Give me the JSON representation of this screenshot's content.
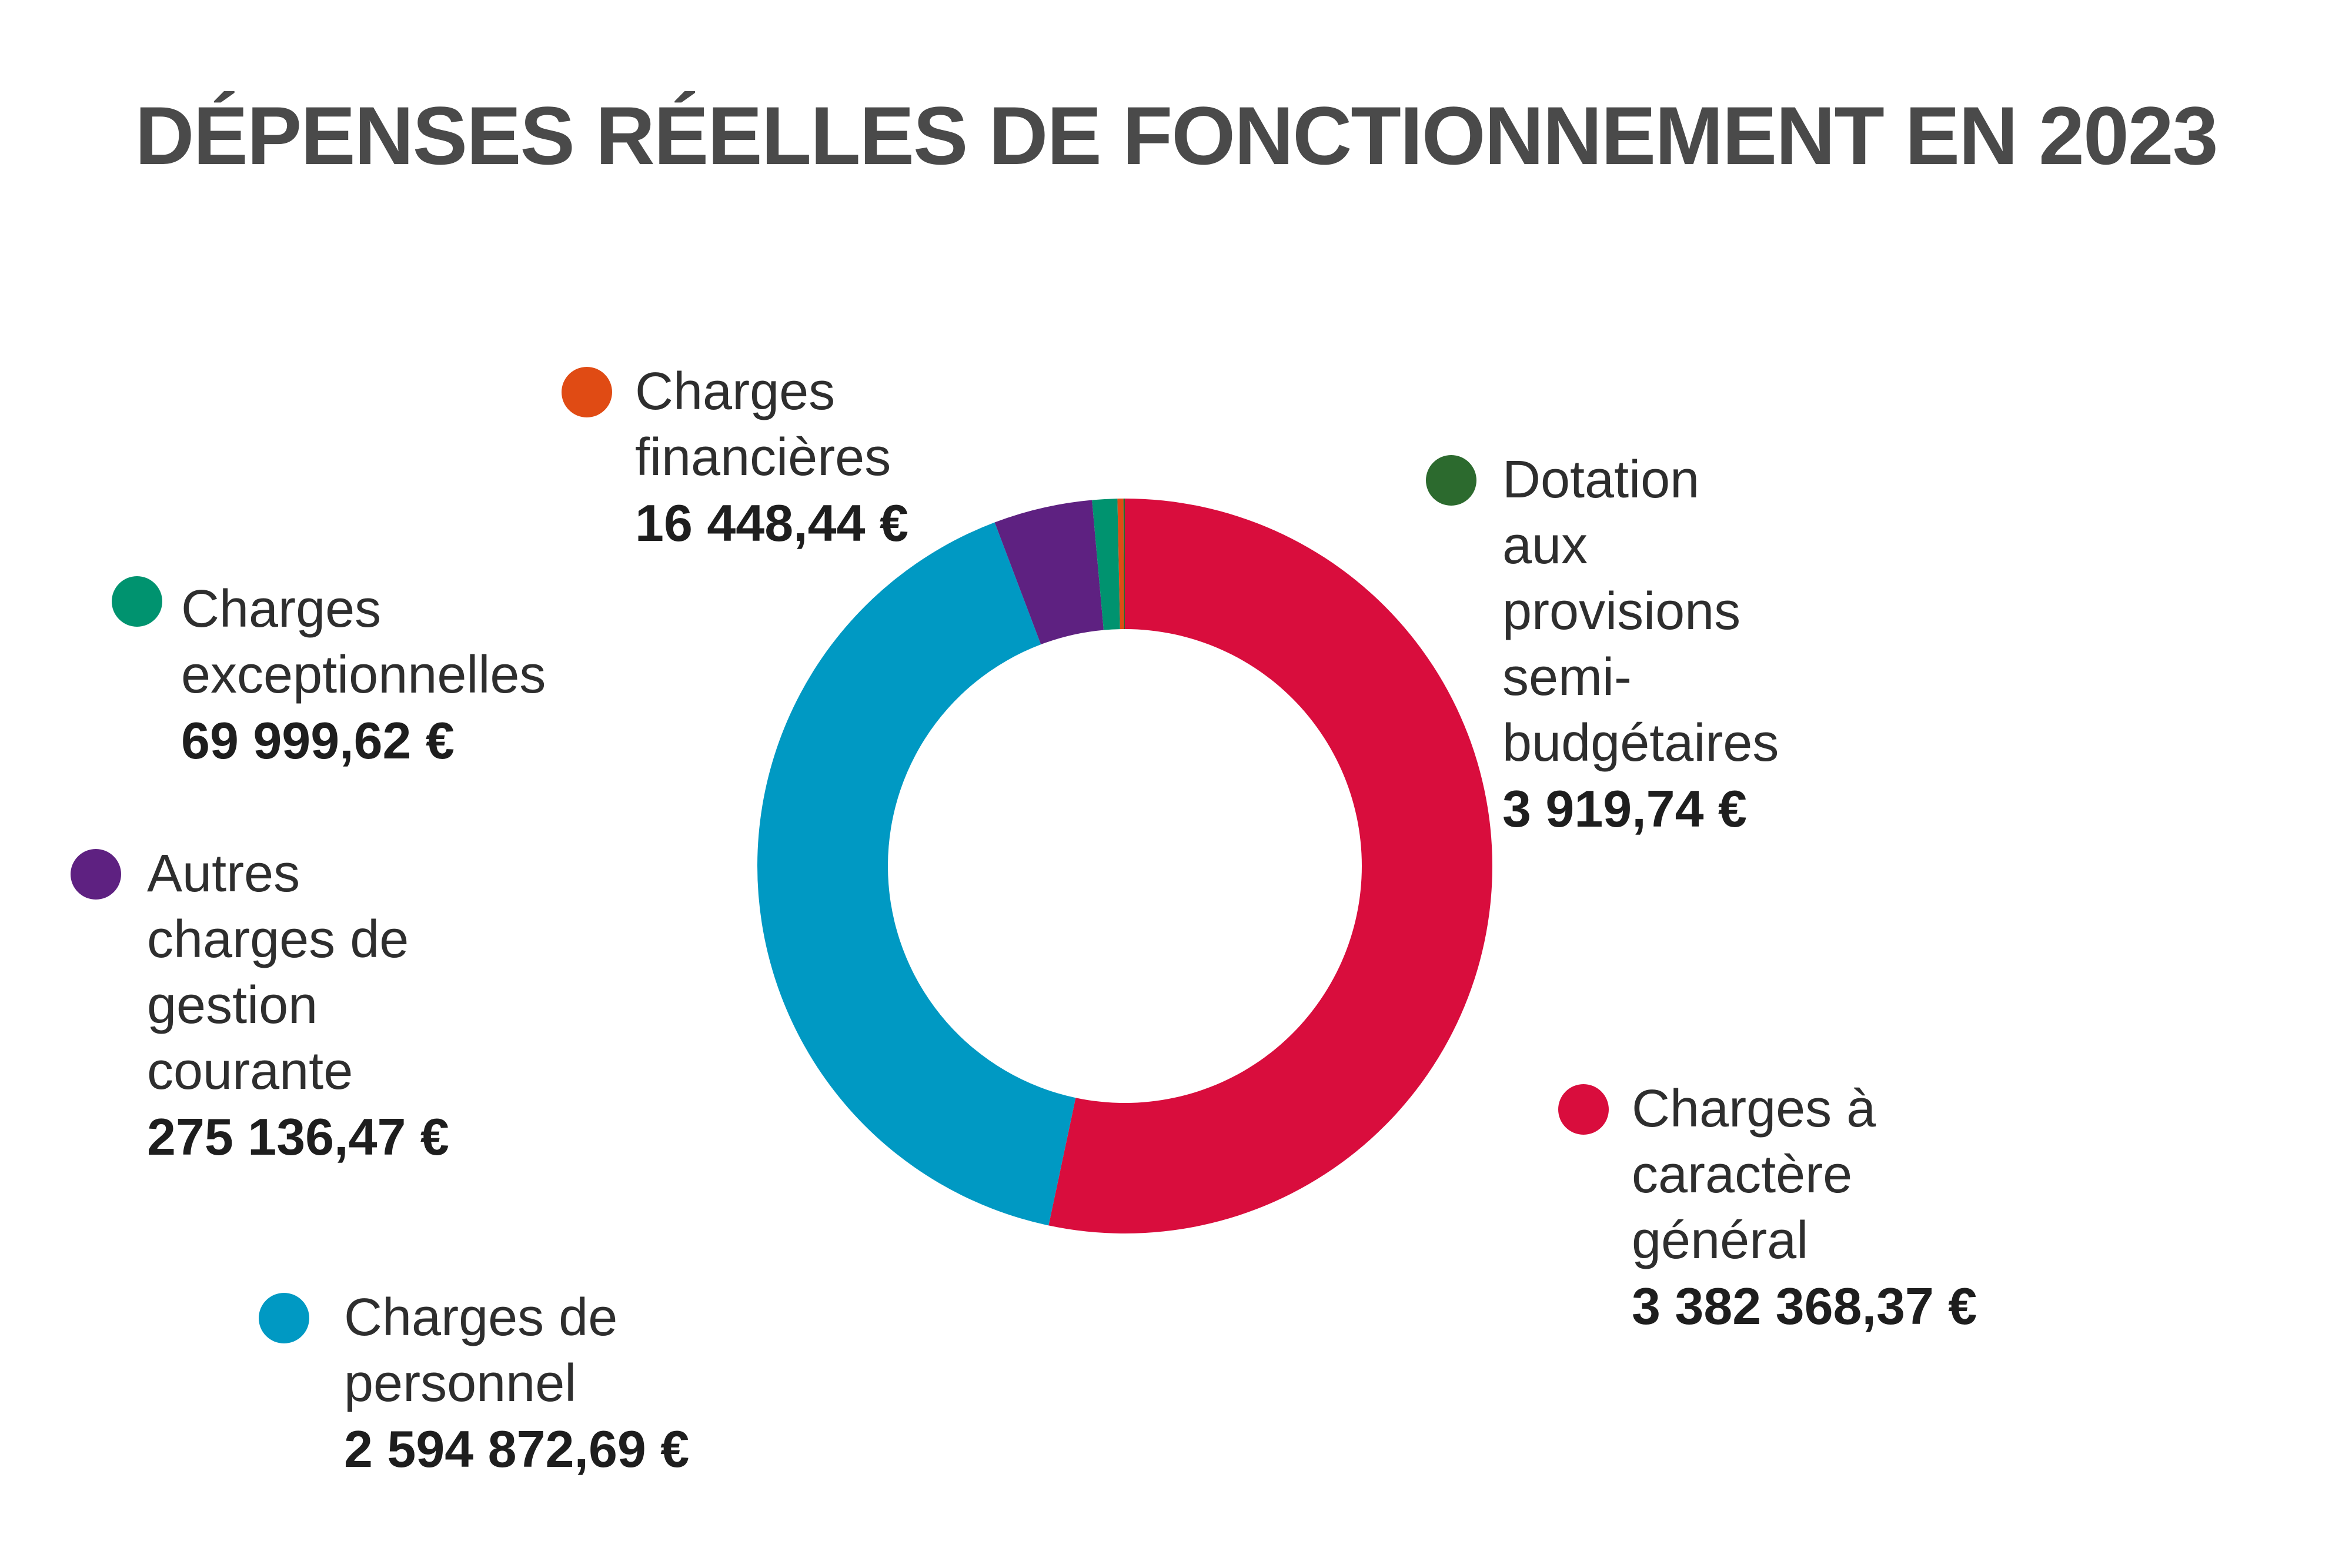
{
  "chart_data": {
    "type": "pie",
    "title": "DÉPENSES RÉELLES DE FONCTIONNEMENT EN 2023",
    "donut": true,
    "legend_placement": "around",
    "slices": [
      {
        "id": "general",
        "label": "Charges à caractère général",
        "value": 3382368.37,
        "value_label": "3 382 368,37 €",
        "color": "#d90d3d"
      },
      {
        "id": "personnel",
        "label": "Charges de personnel",
        "value": 2594872.69,
        "value_label": "2 594 872,69 €",
        "color": "#0099c3"
      },
      {
        "id": "autres",
        "label": "Autres charges de\ngestion courante",
        "value": 275136.47,
        "value_label": "275 136,47 €",
        "color": "#5e2181"
      },
      {
        "id": "exceptionnelles",
        "label": "Charges exceptionnelles",
        "value": 69999.62,
        "value_label": "69 999,62 €",
        "color": "#00936f"
      },
      {
        "id": "financieres",
        "label": "Charges financières",
        "value": 16448.44,
        "value_label": "16 448,44 €",
        "color": "#e04b14"
      },
      {
        "id": "dotation",
        "label": "Dotation aux provisions\nsemi-budgétaires",
        "value": 3919.74,
        "value_label": "3 919,74 €",
        "color": "#2c6a2e"
      }
    ]
  }
}
